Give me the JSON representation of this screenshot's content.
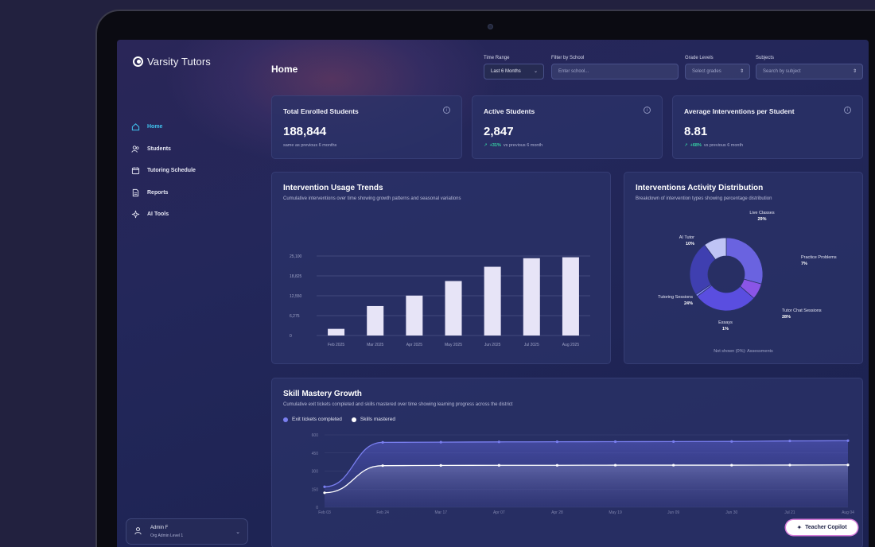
{
  "app": {
    "logo_text": "Varsity Tutors"
  },
  "sidebar": {
    "items": [
      {
        "label": "Home",
        "icon": "home-icon",
        "active": true
      },
      {
        "label": "Students",
        "icon": "users-icon",
        "active": false
      },
      {
        "label": "Tutoring Schedule",
        "icon": "calendar-icon",
        "active": false
      },
      {
        "label": "Reports",
        "icon": "document-icon",
        "active": false
      },
      {
        "label": "AI Tools",
        "icon": "sparkle-icon",
        "active": false
      }
    ],
    "user": {
      "name": "Admin F",
      "role": "Org Admin Level 1"
    }
  },
  "header": {
    "title": "Home",
    "filters": {
      "time_range": {
        "label": "Time Range",
        "value": "Last 6 Months"
      },
      "school": {
        "label": "Filter by School",
        "placeholder": "Enter school..."
      },
      "grade": {
        "label": "Grade Levels",
        "placeholder": "Select grades"
      },
      "subjects": {
        "label": "Subjects",
        "placeholder": "Search by subject"
      }
    }
  },
  "kpis": [
    {
      "title": "Total Enrolled Students",
      "value": "188,844",
      "delta": "",
      "sub": "same as previous 6 months"
    },
    {
      "title": "Active Students",
      "value": "2,847",
      "delta": "+31%",
      "sub": "vs previous 6 month"
    },
    {
      "title": "Average Interventions per Student",
      "value": "8.81",
      "delta": "+68%",
      "sub": "vs previous 6 month"
    }
  ],
  "usage_trends": {
    "title": "Intervention Usage Trends",
    "subtitle": "Cumulative interventions over time showing growth patterns and seasonal variations"
  },
  "distribution": {
    "title": "Interventions Activity Distribution",
    "subtitle": "Breakdown of intervention types showing percentage distribution",
    "note": "Not shown (0%): Assessments"
  },
  "skill_growth": {
    "title": "Skill Mastery Growth",
    "subtitle": "Cumulative exit tickets completed and skills mastered over time showing learning progress across the district",
    "legend": [
      "Exit tickets completed",
      "Skills mastered"
    ]
  },
  "copilot": {
    "label": "Teacher Copilot"
  },
  "colors": {
    "accent": "#41c4f0",
    "bar": "#e7e4f7",
    "donut": [
      "#6a63e0",
      "#8a55e6",
      "#5a4ee0",
      "#8085f0",
      "#3f3fb0",
      "#bfc4f5"
    ]
  },
  "chart_data": [
    {
      "type": "bar",
      "categories": [
        "Feb 2025",
        "Mar 2025",
        "Apr 2025",
        "May 2025",
        "Jun 2025",
        "Jul 2025",
        "Aug 2025"
      ],
      "values": [
        2100,
        9300,
        12600,
        17200,
        21700,
        24400,
        24700
      ],
      "y_ticks": [
        "0",
        "6,275",
        "12,550",
        "18,825",
        "25,100"
      ],
      "ylim": [
        0,
        25100
      ]
    },
    {
      "type": "pie",
      "labels": [
        "Live Classes",
        "Practice Problems",
        "Tutor Chat Sessions",
        "Essays",
        "Tutoring Sessions",
        "AI Tutor"
      ],
      "values": [
        29,
        7,
        28,
        1,
        24,
        10
      ],
      "value_labels": [
        "29%",
        "7%",
        "28%",
        "1%",
        "24%",
        "10%"
      ]
    },
    {
      "type": "area",
      "x": [
        "Feb 03",
        "Feb 24",
        "Mar 17",
        "Apr 07",
        "Apr 28",
        "May 19",
        "Jun 09",
        "Jun 30",
        "Jul 21",
        "Aug 04"
      ],
      "y_ticks": [
        "0",
        "150",
        "300",
        "450",
        "600"
      ],
      "ylim": [
        0,
        600
      ],
      "series": [
        {
          "name": "Exit tickets completed",
          "values": [
            170,
            538,
            540,
            542,
            543,
            544,
            545,
            546,
            550,
            552
          ]
        },
        {
          "name": "Skills mastered",
          "values": [
            120,
            345,
            347,
            348,
            348,
            349,
            349,
            349,
            350,
            351
          ]
        }
      ]
    }
  ]
}
